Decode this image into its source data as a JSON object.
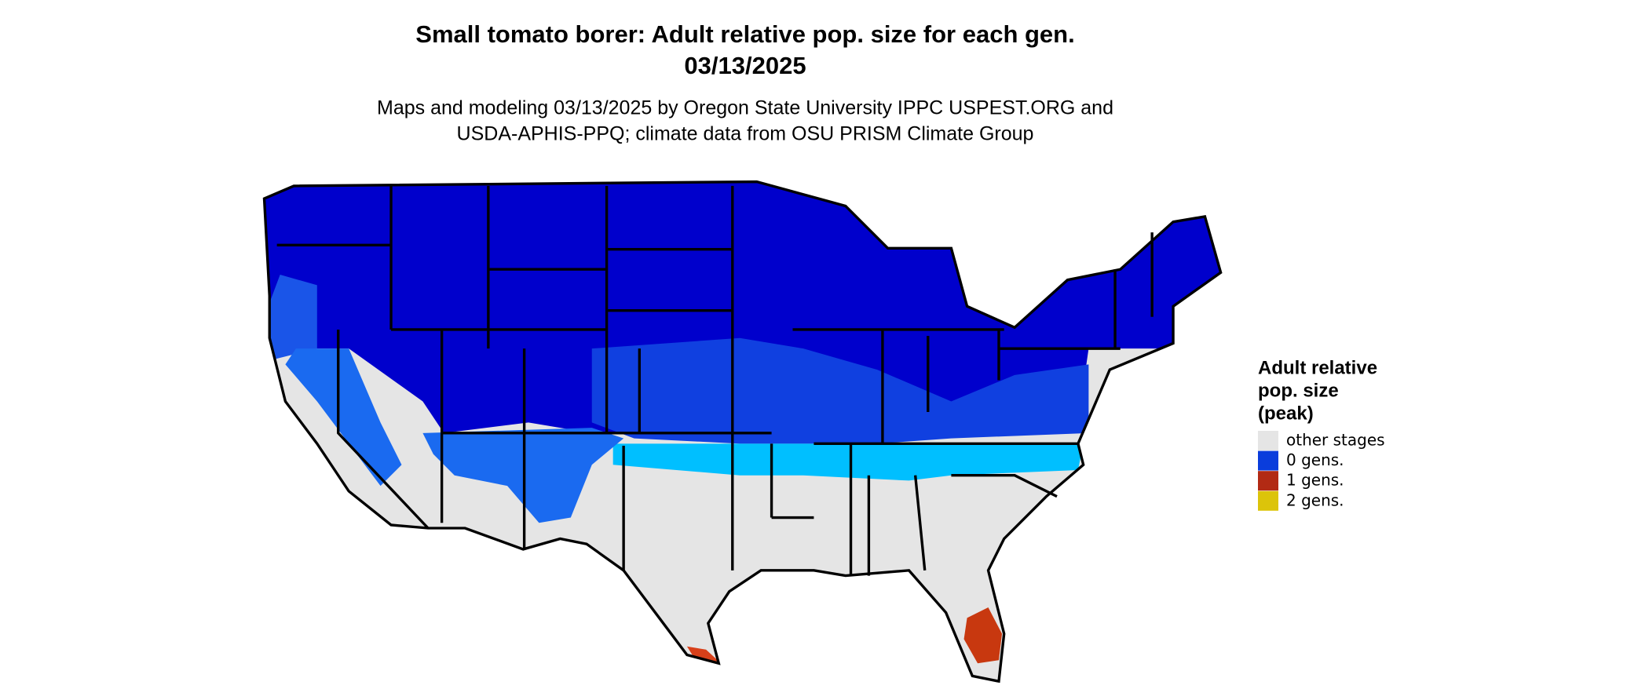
{
  "header": {
    "title": [
      "Small tomato borer: Adult relative pop. size for each gen.",
      "03/13/2025"
    ],
    "subtitle": [
      "Maps and modeling 03/13/2025 by Oregon State University IPPC USPEST.ORG and",
      "USDA-APHIS-PPQ; climate data from OSU PRISM Climate Group"
    ]
  },
  "legend": {
    "title": [
      "Adult relative",
      "pop. size",
      "(peak)"
    ],
    "items": [
      {
        "label": "other stages",
        "color": "#e5e5e5"
      },
      {
        "label": "0 gens.",
        "color": "#0a3ddc"
      },
      {
        "label": "1 gens.",
        "color": "#b22a14"
      },
      {
        "label": "2 gens.",
        "color": "#dcc40a"
      }
    ]
  }
}
